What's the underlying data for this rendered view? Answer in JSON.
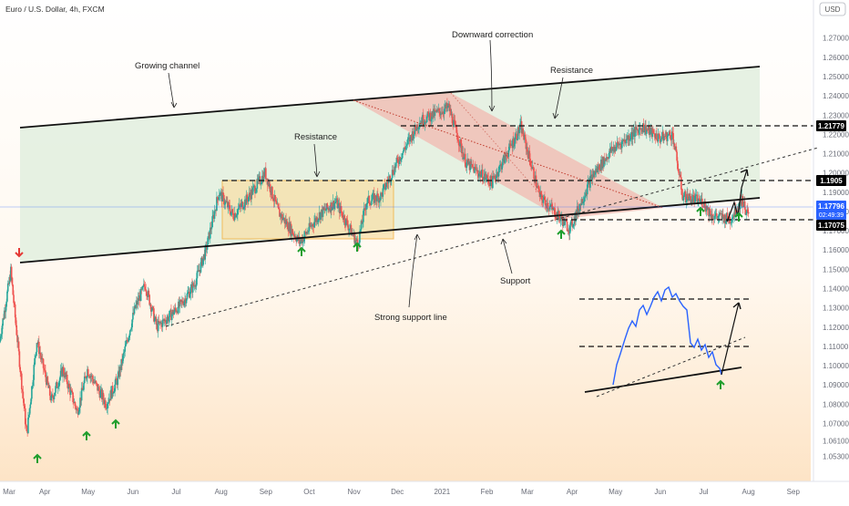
{
  "header": {
    "title": "Euro / U.S. Dollar, 4h, FXCM",
    "currency_button": "USD"
  },
  "colors": {
    "bullish": "#26a69a",
    "bearish": "#ef5350",
    "channel_fill": "#e3efe0",
    "correction_fill": "#f2b8b0",
    "range_fill": "#f9dfa5",
    "range_border": "#f5a623",
    "arrow_up": "#1e9e2d",
    "arrow_down": "#e53935",
    "mini_line": "#2962ff",
    "last_price": "#2962ff",
    "level_tag": "#000000"
  },
  "chart_data": {
    "type": "candlestick",
    "symbol": "EURUSD",
    "timeframe": "4h",
    "xlim": [
      "2020-03-01",
      "2021-09-15"
    ],
    "ylim": [
      1.0475,
      1.285
    ],
    "x_ticks": [
      "Mar",
      "Apr",
      "May",
      "Jun",
      "Jul",
      "Aug",
      "Sep",
      "Oct",
      "Nov",
      "Dec",
      "2021",
      "Feb",
      "Mar",
      "Apr",
      "May",
      "Jun",
      "Jul",
      "Aug",
      "Sep"
    ],
    "y_ticks": [
      "1.27000",
      "1.26000",
      "1.25000",
      "1.24000",
      "1.23000",
      "1.22000",
      "1.21000",
      "1.20000",
      "1.19000",
      "1.18000",
      "1.17000",
      "1.16000",
      "1.15000",
      "1.14000",
      "1.13000",
      "1.12000",
      "1.11000",
      "1.10000",
      "1.09000",
      "1.08000",
      "1.07000",
      "1.06100",
      "1.05300"
    ],
    "price_path": [
      [
        "2020-03-01",
        1.112
      ],
      [
        "2020-03-09",
        1.149
      ],
      [
        "2020-03-12",
        1.125
      ],
      [
        "2020-03-20",
        1.064
      ],
      [
        "2020-03-27",
        1.113
      ],
      [
        "2020-04-06",
        1.082
      ],
      [
        "2020-04-14",
        1.098
      ],
      [
        "2020-04-24",
        1.076
      ],
      [
        "2020-05-01",
        1.098
      ],
      [
        "2020-05-14",
        1.08
      ],
      [
        "2020-05-22",
        1.093
      ],
      [
        "2020-06-03",
        1.13
      ],
      [
        "2020-06-10",
        1.142
      ],
      [
        "2020-06-18",
        1.12
      ],
      [
        "2020-06-26",
        1.125
      ],
      [
        "2020-07-05",
        1.132
      ],
      [
        "2020-07-14",
        1.142
      ],
      [
        "2020-07-22",
        1.16
      ],
      [
        "2020-07-31",
        1.19
      ],
      [
        "2020-08-10",
        1.178
      ],
      [
        "2020-08-20",
        1.187
      ],
      [
        "2020-09-01",
        1.2
      ],
      [
        "2020-09-10",
        1.18
      ],
      [
        "2020-09-25",
        1.164
      ],
      [
        "2020-10-08",
        1.178
      ],
      [
        "2020-10-20",
        1.185
      ],
      [
        "2020-11-04",
        1.163
      ],
      [
        "2020-11-10",
        1.185
      ],
      [
        "2020-11-20",
        1.188
      ],
      [
        "2020-12-01",
        1.205
      ],
      [
        "2020-12-17",
        1.227
      ],
      [
        "2021-01-06",
        1.234
      ],
      [
        "2021-01-18",
        1.205
      ],
      [
        "2021-02-05",
        1.195
      ],
      [
        "2021-02-25",
        1.224
      ],
      [
        "2021-03-10",
        1.188
      ],
      [
        "2021-03-31",
        1.171
      ],
      [
        "2021-04-15",
        1.198
      ],
      [
        "2021-04-29",
        1.212
      ],
      [
        "2021-05-20",
        1.224
      ],
      [
        "2021-06-01",
        1.218
      ],
      [
        "2021-06-10",
        1.22
      ],
      [
        "2021-06-17",
        1.188
      ],
      [
        "2021-07-01",
        1.185
      ],
      [
        "2021-07-07",
        1.178
      ],
      [
        "2021-07-20",
        1.176
      ],
      [
        "2021-07-28",
        1.186
      ],
      [
        "2021-08-01",
        1.178
      ]
    ],
    "levels": [
      1.21779,
      1.1905,
      1.17075
    ],
    "last_price": "1.17796",
    "countdown": "02:49:39",
    "annotations": [
      "Growing channel",
      "Downward correction",
      "Resistance",
      "Resistance",
      "Strong support line",
      "Support"
    ]
  }
}
